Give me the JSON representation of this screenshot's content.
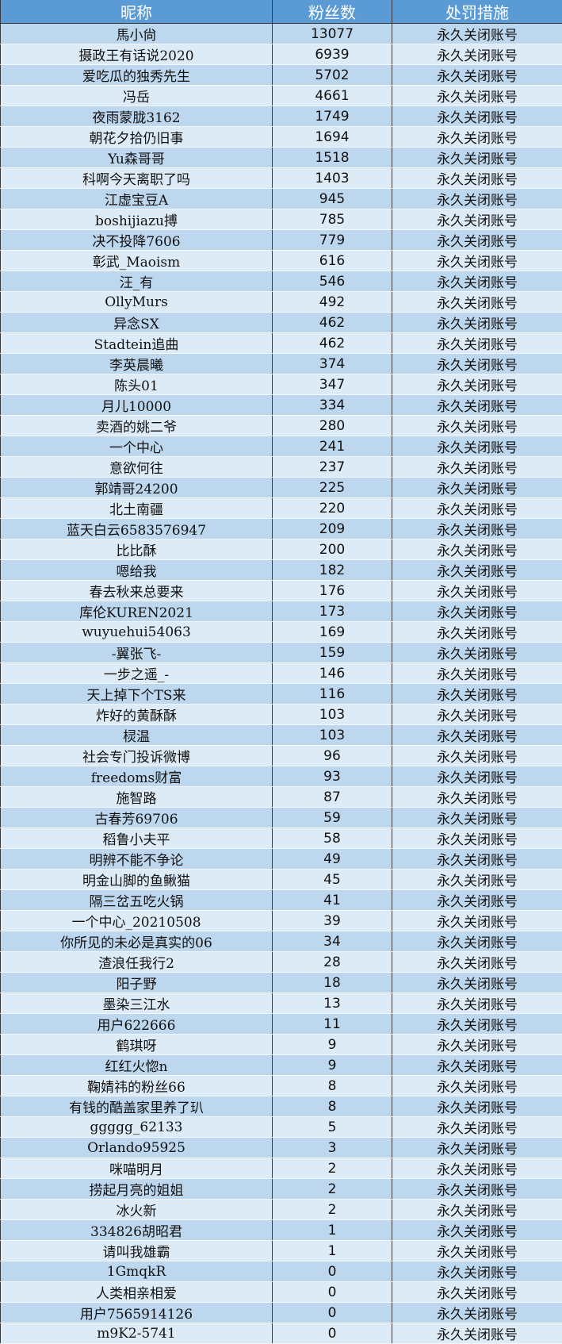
{
  "colors": {
    "header": "#5B9BD5",
    "row_odd": "#BDD7EE",
    "row_even": "#DDEBF7"
  },
  "headers": [
    "昵称",
    "粉丝数",
    "处罚措施"
  ],
  "rows": [
    [
      "馬小尙",
      "13077",
      "永久关闭账号"
    ],
    [
      "摄政王有话说2020",
      "6939",
      "永久关闭账号"
    ],
    [
      "爱吃瓜的独秀先生",
      "5702",
      "永久关闭账号"
    ],
    [
      "冯岳",
      "4661",
      "永久关闭账号"
    ],
    [
      "夜雨蒙胧3162",
      "1749",
      "永久关闭账号"
    ],
    [
      "朝花夕拾仍旧事",
      "1694",
      "永久关闭账号"
    ],
    [
      "Yu森哥哥",
      "1518",
      "永久关闭账号"
    ],
    [
      "科啊今天离职了吗",
      "1403",
      "永久关闭账号"
    ],
    [
      "江虚宝豆A",
      "945",
      "永久关闭账号"
    ],
    [
      "boshijiazu搏",
      "785",
      "永久关闭账号"
    ],
    [
      "决不投降7606",
      "779",
      "永久关闭账号"
    ],
    [
      "彰武_Maoism",
      "616",
      "永久关闭账号"
    ],
    [
      "汪_有",
      "546",
      "永久关闭账号"
    ],
    [
      "OllyMurs",
      "492",
      "永久关闭账号"
    ],
    [
      "异念SX",
      "462",
      "永久关闭账号"
    ],
    [
      "Stadtein追曲",
      "462",
      "永久关闭账号"
    ],
    [
      "李英晨曦",
      "374",
      "永久关闭账号"
    ],
    [
      "陈头01",
      "347",
      "永久关闭账号"
    ],
    [
      "月儿10000",
      "334",
      "永久关闭账号"
    ],
    [
      "卖酒的姚二爷",
      "280",
      "永久关闭账号"
    ],
    [
      "一个中心",
      "241",
      "永久关闭账号"
    ],
    [
      "意欲何往",
      "237",
      "永久关闭账号"
    ],
    [
      "郭靖哥24200",
      "225",
      "永久关闭账号"
    ],
    [
      "北土南疆",
      "220",
      "永久关闭账号"
    ],
    [
      "蓝天白云6583576947",
      "209",
      "永久关闭账号"
    ],
    [
      "比比酥",
      "200",
      "永久关闭账号"
    ],
    [
      "嗯给我",
      "182",
      "永久关闭账号"
    ],
    [
      "春去秋来总要来",
      "176",
      "永久关闭账号"
    ],
    [
      "库伦KUREN2021",
      "173",
      "永久关闭账号"
    ],
    [
      "wuyuehui54063",
      "169",
      "永久关闭账号"
    ],
    [
      "-翼张飞-",
      "159",
      "永久关闭账号"
    ],
    [
      "一步之遥_-",
      "146",
      "永久关闭账号"
    ],
    [
      "天上掉下个TS来",
      "116",
      "永久关闭账号"
    ],
    [
      "炸好的黄酥酥",
      "103",
      "永久关闭账号"
    ],
    [
      "棂温",
      "103",
      "永久关闭账号"
    ],
    [
      "社会专门投诉微博",
      "96",
      "永久关闭账号"
    ],
    [
      "freedoms财富",
      "93",
      "永久关闭账号"
    ],
    [
      "施智路",
      "87",
      "永久关闭账号"
    ],
    [
      "古春芳69706",
      "59",
      "永久关闭账号"
    ],
    [
      "稻鲁小夫平",
      "58",
      "永久关闭账号"
    ],
    [
      "明辨不能不争论",
      "49",
      "永久关闭账号"
    ],
    [
      "明金山脚的鱼鳅猫",
      "45",
      "永久关闭账号"
    ],
    [
      "隔三岔五吃火锅",
      "41",
      "永久关闭账号"
    ],
    [
      "一个中心_20210508",
      "39",
      "永久关闭账号"
    ],
    [
      "你所见的未必是真实的06",
      "34",
      "永久关闭账号"
    ],
    [
      "渣浪任我行2",
      "28",
      "永久关闭账号"
    ],
    [
      "阳子野",
      "18",
      "永久关闭账号"
    ],
    [
      "墨染三江水",
      "13",
      "永久关闭账号"
    ],
    [
      "用户622666",
      "11",
      "永久关闭账号"
    ],
    [
      "鹤琪呀",
      "9",
      "永久关闭账号"
    ],
    [
      "红红火惚n",
      "9",
      "永久关闭账号"
    ],
    [
      "鞠婧祎的粉丝66",
      "8",
      "永久关闭账号"
    ],
    [
      "有钱的酷盖家里养了玐",
      "8",
      "永久关闭账号"
    ],
    [
      "ggggg_62133",
      "5",
      "永久关闭账号"
    ],
    [
      "Orlando95925",
      "3",
      "永久关闭账号"
    ],
    [
      "咪喵明月",
      "2",
      "永久关闭账号"
    ],
    [
      "捞起月亮的姐姐",
      "2",
      "永久关闭账号"
    ],
    [
      "冰火新",
      "2",
      "永久关闭账号"
    ],
    [
      "334826胡昭君",
      "1",
      "永久关闭账号"
    ],
    [
      "请叫我雄霸",
      "1",
      "永久关闭账号"
    ],
    [
      "1GmqkR",
      "0",
      "永久关闭账号"
    ],
    [
      "人类相亲相爱",
      "0",
      "永久关闭账号"
    ],
    [
      "用户7565914126",
      "0",
      "永久关闭账号"
    ],
    [
      "m9K2-5741",
      "0",
      "永久关闭账号"
    ]
  ]
}
